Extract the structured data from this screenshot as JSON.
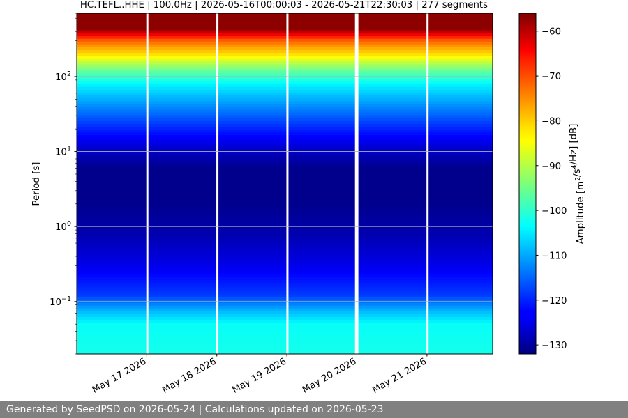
{
  "chart_data": {
    "type": "heatmap",
    "title": "HC.TEFL..HHE | 100.0Hz | 2026-05-16T00:00:03 - 2026-05-21T22:30:03 | 277 segments",
    "ylabel": "Period [s]",
    "y_scale": "log",
    "y_inverted": true,
    "ylim": [
      0.02,
      700
    ],
    "y_ticks": [
      {
        "value": 0.1,
        "base": "10",
        "exp": "−1"
      },
      {
        "value": 1,
        "base": "10",
        "exp": "0"
      },
      {
        "value": 10,
        "base": "10",
        "exp": "1"
      },
      {
        "value": 100,
        "base": "10",
        "exp": "2"
      }
    ],
    "x_start": "2026-05-16T00:00:03",
    "x_end": "2026-05-21T22:30:03",
    "x_ticks": [
      {
        "date": "2026-05-17",
        "label": "May 17 2026"
      },
      {
        "date": "2026-05-18",
        "label": "May 18 2026"
      },
      {
        "date": "2026-05-19",
        "label": "May 19 2026"
      },
      {
        "date": "2026-05-20",
        "label": "May 20 2026"
      },
      {
        "date": "2026-05-21",
        "label": "May 21 2026"
      }
    ],
    "data_gaps": [
      {
        "start": "2026-05-16T23:50:00",
        "end": "2026-05-17T00:10:00"
      },
      {
        "start": "2026-05-17T23:50:00",
        "end": "2026-05-18T00:10:00"
      },
      {
        "start": "2026-05-18T23:50:00",
        "end": "2026-05-19T00:10:00"
      },
      {
        "start": "2026-05-19T23:20:00",
        "end": "2026-05-20T00:30:00"
      },
      {
        "start": "2026-05-20T23:50:00",
        "end": "2026-05-21T00:10:00"
      }
    ],
    "amplitude_profile": [
      {
        "period": 0.02,
        "db": -102
      },
      {
        "period": 0.05,
        "db": -103
      },
      {
        "period": 0.08,
        "db": -110
      },
      {
        "period": 0.12,
        "db": -118
      },
      {
        "period": 0.3,
        "db": -124
      },
      {
        "period": 0.7,
        "db": -128
      },
      {
        "period": 2,
        "db": -131
      },
      {
        "period": 6,
        "db": -131
      },
      {
        "period": 10,
        "db": -127
      },
      {
        "period": 20,
        "db": -120
      },
      {
        "period": 40,
        "db": -112
      },
      {
        "period": 80,
        "db": -104
      },
      {
        "period": 130,
        "db": -94
      },
      {
        "period": 200,
        "db": -82
      },
      {
        "period": 300,
        "db": -73
      },
      {
        "period": 430,
        "db": -57
      },
      {
        "period": 700,
        "db": -57
      }
    ],
    "grid": true,
    "colorbar": {
      "label": "Amplitude [m²/s⁴/Hz] [dB]",
      "colormap": "jet",
      "range": [
        -132,
        -56
      ],
      "ticks": [
        -60,
        -70,
        -80,
        -90,
        -100,
        -110,
        -120,
        -130
      ]
    }
  },
  "footer": "Generated by SeedPSD on 2026-05-24 | Calculations updated on 2026-05-23"
}
